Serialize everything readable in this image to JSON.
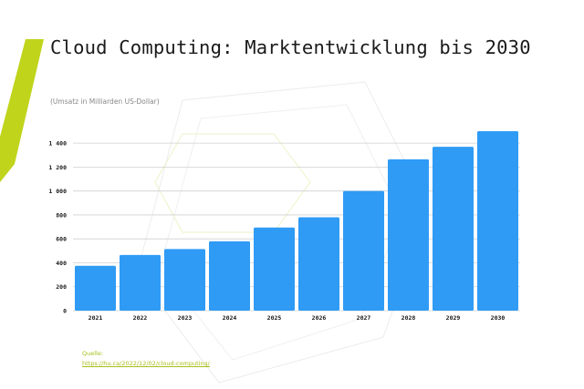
{
  "title": "Cloud Computing: Marktentwicklung bis 2030",
  "subtitle": "(Umsatz in Milliarden US-Dollar)",
  "source": {
    "label": "Quelle:",
    "url": "https://hu.ca/2022/12/02/cloud-computing/"
  },
  "colors": {
    "bar": "#2f9bf5",
    "accent": "#c0d41b",
    "grid": "#d0d0d0",
    "text": "#1a1a1a"
  },
  "chart_data": {
    "type": "bar",
    "categories": [
      "2021",
      "2022",
      "2023",
      "2024",
      "2025",
      "2026",
      "2027",
      "2028",
      "2029",
      "2030"
    ],
    "values": [
      375,
      465,
      515,
      580,
      695,
      780,
      1000,
      1265,
      1370,
      1500
    ],
    "ylim": [
      0,
      1500
    ],
    "yticks": [
      0,
      200,
      400,
      600,
      800,
      1000,
      1200,
      1400
    ],
    "ytick_labels": [
      "0",
      "200",
      "400",
      "600",
      "800",
      "1 000",
      "1 200",
      "1 400"
    ],
    "grid": true,
    "legend": "none"
  }
}
